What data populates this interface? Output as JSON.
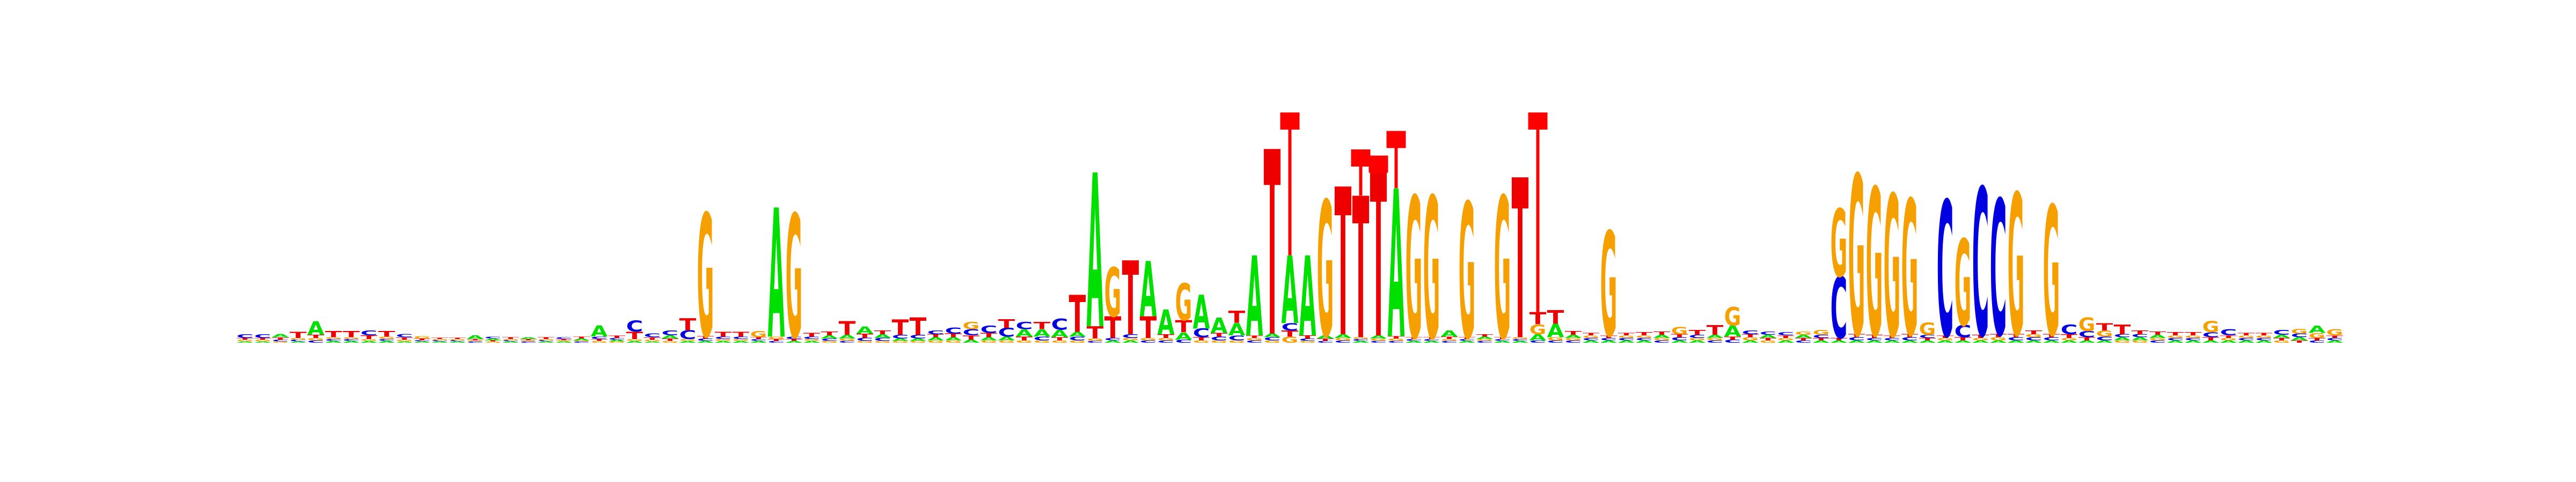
{
  "motif_logo": {
    "alphabet": [
      "A",
      "C",
      "G",
      "T"
    ],
    "colors": {
      "A": "#00e000",
      "C": "#0000e0",
      "G": "#f5a000",
      "T": "#ee0000",
      "error_bar": "#ff0000"
    },
    "positions": [
      {
        "A": 0.02,
        "C": 0.06,
        "G": 0.03,
        "T": 0.03
      },
      {
        "A": 0.02,
        "C": 0.06,
        "G": 0.03,
        "T": 0.03
      },
      {
        "A": 0.05,
        "C": 0.03,
        "G": 0.02,
        "T": 0.04
      },
      {
        "A": 0.02,
        "C": 0.03,
        "G": 0.03,
        "T": 0.1
      },
      {
        "A": 0.22,
        "C": 0.04,
        "G": 0.04,
        "T": 0.05
      },
      {
        "A": 0.03,
        "C": 0.03,
        "G": 0.03,
        "T": 0.1
      },
      {
        "A": 0.03,
        "C": 0.03,
        "G": 0.03,
        "T": 0.1
      },
      {
        "A": 0.03,
        "C": 0.08,
        "G": 0.03,
        "T": 0.06
      },
      {
        "A": 0.03,
        "C": 0.03,
        "G": 0.04,
        "T": 0.09
      },
      {
        "A": 0.02,
        "C": 0.05,
        "G": 0.03,
        "T": 0.04
      },
      {
        "A": 0.02,
        "C": 0.02,
        "G": 0.04,
        "T": 0.03
      },
      {
        "A": 0.02,
        "C": 0.02,
        "G": 0.02,
        "T": 0.02
      },
      {
        "A": 0.02,
        "C": 0.02,
        "G": 0.02,
        "T": 0.02
      },
      {
        "A": 0.06,
        "C": 0.02,
        "G": 0.02,
        "T": 0.02
      },
      {
        "A": 0.03,
        "C": 0.03,
        "G": 0.02,
        "T": 0.02
      },
      {
        "A": 0.02,
        "C": 0.02,
        "G": 0.02,
        "T": 0.03
      },
      {
        "A": 0.03,
        "C": 0.02,
        "G": 0.02,
        "T": 0.02
      },
      {
        "A": 0.02,
        "C": 0.02,
        "G": 0.02,
        "T": 0.03
      },
      {
        "A": 0.02,
        "C": 0.03,
        "G": 0.02,
        "T": 0.02
      },
      {
        "A": 0.03,
        "C": 0.02,
        "G": 0.02,
        "T": 0.03
      },
      {
        "A": 0.18,
        "C": 0.04,
        "G": 0.03,
        "T": 0.03
      },
      {
        "A": 0.03,
        "C": 0.03,
        "G": 0.02,
        "T": 0.04
      },
      {
        "A": 0.03,
        "C": 0.18,
        "G": 0.03,
        "T": 0.12
      },
      {
        "A": 0.02,
        "C": 0.06,
        "G": 0.03,
        "T": 0.04
      },
      {
        "A": 0.05,
        "C": 0.08,
        "G": 0.03,
        "T": 0.04
      },
      {
        "A": 0.03,
        "C": 0.14,
        "G": 0.03,
        "T": 0.2
      },
      {
        "A": 0.03,
        "C": 0.04,
        "G": 2.0,
        "T": 0.04
      },
      {
        "A": 0.03,
        "C": 0.04,
        "G": 0.03,
        "T": 0.08
      },
      {
        "A": 0.03,
        "C": 0.04,
        "G": 0.03,
        "T": 0.08
      },
      {
        "A": 0.03,
        "C": 0.03,
        "G": 0.1,
        "T": 0.03
      },
      {
        "A": 2.1,
        "C": 0.03,
        "G": 0.04,
        "T": 0.03
      },
      {
        "A": 0.03,
        "C": 0.04,
        "G": 2.0,
        "T": 0.03
      },
      {
        "A": 0.03,
        "C": 0.04,
        "G": 0.03,
        "T": 0.06
      },
      {
        "A": 0.05,
        "C": 0.04,
        "G": 0.03,
        "T": 0.06
      },
      {
        "A": 0.06,
        "C": 0.03,
        "G": 0.04,
        "T": 0.22
      },
      {
        "A": 0.12,
        "C": 0.05,
        "G": 0.03,
        "T": 0.07
      },
      {
        "A": 0.06,
        "C": 0.05,
        "G": 0.03,
        "T": 0.06
      },
      {
        "A": 0.04,
        "C": 0.06,
        "G": 0.03,
        "T": 0.25
      },
      {
        "A": 0.04,
        "C": 0.06,
        "G": 0.03,
        "T": 0.28
      },
      {
        "A": 0.05,
        "C": 0.06,
        "G": 0.04,
        "T": 0.05
      },
      {
        "A": 0.05,
        "C": 0.1,
        "G": 0.04,
        "T": 0.06
      },
      {
        "A": 0.05,
        "C": 0.1,
        "G": 0.12,
        "T": 0.07
      },
      {
        "A": 0.05,
        "C": 0.12,
        "G": 0.04,
        "T": 0.07
      },
      {
        "A": 0.06,
        "C": 0.14,
        "G": 0.04,
        "T": 0.14
      },
      {
        "A": 0.12,
        "C": 0.12,
        "G": 0.04,
        "T": 0.06
      },
      {
        "A": 0.12,
        "C": 0.06,
        "G": 0.04,
        "T": 0.12
      },
      {
        "A": 0.12,
        "C": 0.18,
        "G": 0.04,
        "T": 0.05
      },
      {
        "A": 0.08,
        "C": 0.06,
        "G": 0.04,
        "T": 0.6
      },
      {
        "A": 2.5,
        "C": 0.03,
        "G": 0.04,
        "T": 0.2
      },
      {
        "A": 0.04,
        "C": 0.04,
        "G": 0.8,
        "T": 0.35
      },
      {
        "A": 0.04,
        "C": 0.06,
        "G": 0.04,
        "T": 1.2
      },
      {
        "A": 0.9,
        "C": 0.04,
        "G": 0.04,
        "T": 0.35
      },
      {
        "A": 0.4,
        "C": 0.04,
        "G": 0.04,
        "T": 0.06
      },
      {
        "A": 0.12,
        "C": 0.05,
        "G": 0.6,
        "T": 0.2
      },
      {
        "A": 0.55,
        "C": 0.14,
        "G": 0.04,
        "T": 0.05
      },
      {
        "A": 0.25,
        "C": 0.06,
        "G": 0.04,
        "T": 0.06
      },
      {
        "A": 0.2,
        "C": 0.08,
        "G": 0.04,
        "T": 0.2
      },
      {
        "A": 1.3,
        "C": 0.04,
        "G": 0.04,
        "T": 0.04
      },
      {
        "A": 0.06,
        "C": 0.05,
        "G": 0.04,
        "T": 3.0
      },
      {
        "A": 1.1,
        "C": 0.12,
        "G": 0.1,
        "T": 0.1
      },
      {
        "A": 1.3,
        "C": 0.04,
        "G": 0.03,
        "T": 0.05
      },
      {
        "A": 0.05,
        "C": 0.03,
        "G": 2.2,
        "T": 0.04
      },
      {
        "A": 0.06,
        "C": 0.04,
        "G": 0.04,
        "T": 2.4
      },
      {
        "A": 0.03,
        "C": 0.03,
        "G": 0.03,
        "T": 2.3
      },
      {
        "A": 0.05,
        "C": 0.03,
        "G": 0.04,
        "T": 2.7
      },
      {
        "A": 2.4,
        "C": 0.03,
        "G": 0.04,
        "T": 0.04
      },
      {
        "A": 0.03,
        "C": 0.03,
        "G": 2.3,
        "T": 0.03
      },
      {
        "A": 0.03,
        "C": 0.03,
        "G": 2.3,
        "T": 0.03
      },
      {
        "A": 0.1,
        "C": 0.03,
        "G": 0.03,
        "T": 0.04
      },
      {
        "A": 0.03,
        "C": 0.03,
        "G": 2.2,
        "T": 0.03
      },
      {
        "A": 0.04,
        "C": 0.03,
        "G": 0.03,
        "T": 0.04
      },
      {
        "A": 0.03,
        "C": 0.03,
        "G": 2.3,
        "T": 0.03
      },
      {
        "A": 0.03,
        "C": 0.03,
        "G": 0.03,
        "T": 2.6
      },
      {
        "A": 0.1,
        "C": 0.04,
        "G": 0.16,
        "T": 0.2
      },
      {
        "A": 0.22,
        "C": 0.04,
        "G": 0.05,
        "T": 0.22
      },
      {
        "A": 0.05,
        "C": 0.04,
        "G": 0.04,
        "T": 0.06
      },
      {
        "A": 0.04,
        "C": 0.04,
        "G": 0.04,
        "T": 0.04
      },
      {
        "A": 0.04,
        "C": 0.04,
        "G": 1.7,
        "T": 0.04
      },
      {
        "A": 0.04,
        "C": 0.04,
        "G": 0.04,
        "T": 0.04
      },
      {
        "A": 0.04,
        "C": 0.04,
        "G": 0.04,
        "T": 0.05
      },
      {
        "A": 0.05,
        "C": 0.04,
        "G": 0.04,
        "T": 0.05
      },
      {
        "A": 0.04,
        "C": 0.05,
        "G": 0.12,
        "T": 0.05
      },
      {
        "A": 0.04,
        "C": 0.05,
        "G": 0.04,
        "T": 0.08
      },
      {
        "A": 0.05,
        "C": 0.04,
        "G": 0.04,
        "T": 0.16
      },
      {
        "A": 0.18,
        "C": 0.05,
        "G": 0.3,
        "T": 0.05
      },
      {
        "A": 0.04,
        "C": 0.06,
        "G": 0.05,
        "T": 0.05
      },
      {
        "A": 0.05,
        "C": 0.05,
        "G": 0.04,
        "T": 0.04
      },
      {
        "A": 0.04,
        "C": 0.05,
        "G": 0.04,
        "T": 0.04
      },
      {
        "A": 0.05,
        "C": 0.04,
        "G": 0.05,
        "T": 0.04
      },
      {
        "A": 0.04,
        "C": 0.05,
        "G": 0.08,
        "T": 0.04
      },
      {
        "A": 0.04,
        "C": 1.0,
        "G": 1.1,
        "T": 0.04
      },
      {
        "A": 0.04,
        "C": 0.05,
        "G": 2.6,
        "T": 0.05
      },
      {
        "A": 0.04,
        "C": 0.04,
        "G": 2.4,
        "T": 0.05
      },
      {
        "A": 0.04,
        "C": 0.04,
        "G": 2.3,
        "T": 0.04
      },
      {
        "A": 0.04,
        "C": 0.05,
        "G": 2.2,
        "T": 0.05
      },
      {
        "A": 0.04,
        "C": 0.05,
        "G": 0.2,
        "T": 0.04
      },
      {
        "A": 0.04,
        "C": 2.2,
        "G": 0.04,
        "T": 0.04
      },
      {
        "A": 0.04,
        "C": 0.2,
        "G": 1.4,
        "T": 0.05
      },
      {
        "A": 0.04,
        "C": 2.4,
        "G": 0.04,
        "T": 0.05
      },
      {
        "A": 0.04,
        "C": 2.2,
        "G": 0.05,
        "T": 0.05
      },
      {
        "A": 0.04,
        "C": 0.05,
        "G": 2.3,
        "T": 0.05
      },
      {
        "A": 0.04,
        "C": 0.05,
        "G": 0.05,
        "T": 0.06
      },
      {
        "A": 0.04,
        "C": 0.05,
        "G": 2.1,
        "T": 0.05
      },
      {
        "A": 0.04,
        "C": 0.16,
        "G": 0.04,
        "T": 0.06
      },
      {
        "A": 0.04,
        "C": 0.1,
        "G": 0.22,
        "T": 0.05
      },
      {
        "A": 0.04,
        "C": 0.06,
        "G": 0.1,
        "T": 0.12
      },
      {
        "A": 0.05,
        "C": 0.05,
        "G": 0.04,
        "T": 0.16
      },
      {
        "A": 0.05,
        "C": 0.05,
        "G": 0.04,
        "T": 0.06
      },
      {
        "A": 0.05,
        "C": 0.04,
        "G": 0.04,
        "T": 0.05
      },
      {
        "A": 0.04,
        "C": 0.04,
        "G": 0.04,
        "T": 0.05
      },
      {
        "A": 0.04,
        "C": 0.04,
        "G": 0.04,
        "T": 0.05
      },
      {
        "A": 0.04,
        "C": 0.08,
        "G": 0.18,
        "T": 0.05
      },
      {
        "A": 0.04,
        "C": 0.1,
        "G": 0.04,
        "T": 0.04
      },
      {
        "A": 0.04,
        "C": 0.04,
        "G": 0.04,
        "T": 0.04
      },
      {
        "A": 0.04,
        "C": 0.04,
        "G": 0.04,
        "T": 0.04
      },
      {
        "A": 0.05,
        "C": 0.08,
        "G": 0.04,
        "T": 0.04
      },
      {
        "A": 0.05,
        "C": 0.06,
        "G": 0.08,
        "T": 0.04
      },
      {
        "A": 0.12,
        "C": 0.04,
        "G": 0.08,
        "T": 0.04
      },
      {
        "A": 0.04,
        "C": 0.04,
        "G": 0.1,
        "T": 0.04
      }
    ],
    "error_bars": [
      {
        "position": 59,
        "bits": 3.6
      },
      {
        "position": 63,
        "bits": 3.0
      },
      {
        "position": 64,
        "bits": 2.9
      },
      {
        "position": 65,
        "bits": 3.3
      },
      {
        "position": 73,
        "bits": 3.6
      }
    ]
  }
}
